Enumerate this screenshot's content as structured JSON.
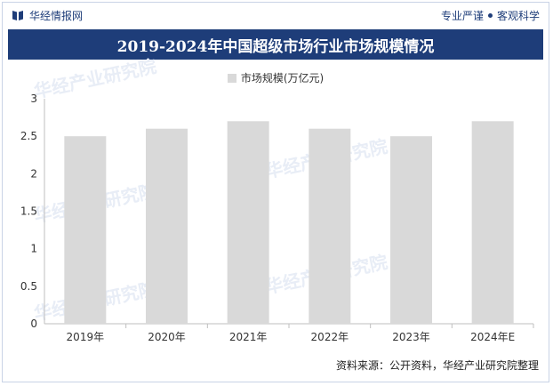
{
  "header": {
    "brand": "华经情报网",
    "tag1": "专业严谨",
    "tag2": "客观科学"
  },
  "chart_data": {
    "type": "bar",
    "title": "2019-2024年中国超级市场行业市场规模情况",
    "categories": [
      "2019年",
      "2020年",
      "2021年",
      "2022年",
      "2023年",
      "2024年E"
    ],
    "series": [
      {
        "name": "市场规模(万亿元)",
        "values": [
          2.5,
          2.6,
          2.7,
          2.6,
          2.5,
          2.7
        ]
      }
    ],
    "ylim": [
      0,
      3
    ],
    "yticks": [
      "0",
      "0.5",
      "1",
      "1.5",
      "2",
      "2.5",
      "3"
    ],
    "bar_color": "#d9d9d9",
    "legend_position": "top-center",
    "grid": false
  },
  "footer": {
    "source": "资料来源：公开资料，华经产业研究院整理"
  },
  "watermark": "华经产业研究院"
}
